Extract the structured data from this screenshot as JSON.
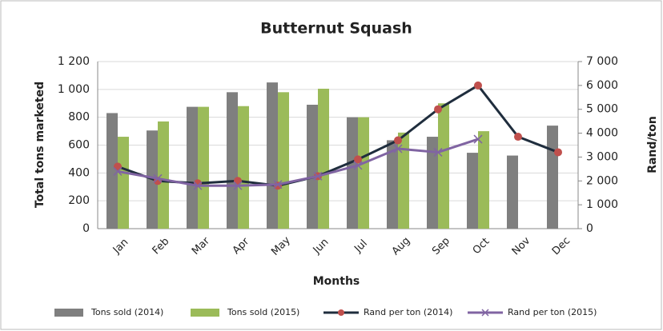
{
  "chart_data": {
    "type": "bar_line",
    "title": "Butternut Squash",
    "x_label": "Months",
    "y_label": "Total tons marketed",
    "y2_label": "Rand/ton",
    "categories": [
      "Jan",
      "Feb",
      "Mar",
      "Apr",
      "May",
      "Jun",
      "Jul",
      "Aug",
      "Sep",
      "Oct",
      "Nov",
      "Dec"
    ],
    "series": [
      {
        "name": "Tons sold (2014)",
        "type": "bar",
        "color": "#7f7f7f",
        "values": [
          830,
          705,
          875,
          980,
          1050,
          890,
          800,
          635,
          660,
          545,
          525,
          740
        ]
      },
      {
        "name": "Tons sold (2015)",
        "type": "bar",
        "color": "#9bbb59",
        "values": [
          660,
          770,
          875,
          880,
          980,
          1005,
          800,
          690,
          900,
          700,
          null,
          null
        ]
      },
      {
        "name": "Rand per ton (2014)",
        "type": "line",
        "axis": "y2",
        "color": "#1f2d3d",
        "marker": "circle",
        "marker_color": "#c0504d",
        "values": [
          2600,
          2000,
          1900,
          2000,
          1800,
          2200,
          2900,
          3700,
          5000,
          6000,
          3850,
          3200
        ]
      },
      {
        "name": "Rand per ton (2015)",
        "type": "line",
        "axis": "y2",
        "color": "#8064a2",
        "marker": "x",
        "marker_color": "#8064a2",
        "values": [
          2400,
          2100,
          1800,
          1800,
          1850,
          2200,
          2650,
          3350,
          3200,
          3750,
          null,
          null
        ]
      }
    ],
    "ylim": [
      0,
      1200
    ],
    "yticks": [
      0,
      200,
      400,
      600,
      800,
      {
        "value": 1000,
        "label": "1 000"
      },
      {
        "value": 1200,
        "label": "1 200"
      }
    ],
    "y2lim": [
      0,
      7000
    ],
    "y2ticks": [
      0,
      {
        "value": 1000,
        "label": "1 000"
      },
      {
        "value": 2000,
        "label": "2 000"
      },
      {
        "value": 3000,
        "label": "3 000"
      },
      {
        "value": 4000,
        "label": "4 000"
      },
      {
        "value": 5000,
        "label": "5 000"
      },
      {
        "value": 6000,
        "label": "6 000"
      },
      {
        "value": 7000,
        "label": "7 000"
      }
    ],
    "grid": true,
    "legend": "bottom"
  }
}
